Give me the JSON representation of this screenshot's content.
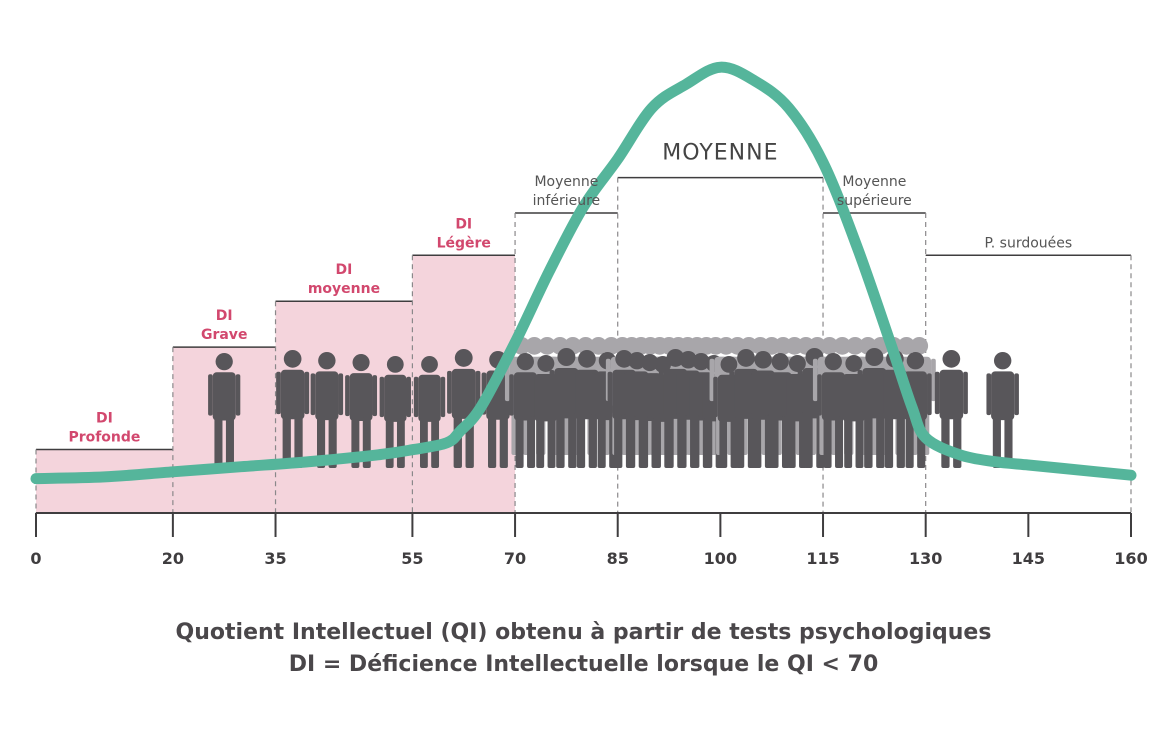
{
  "chart_data": {
    "type": "area",
    "x_ticks": [
      0,
      20,
      35,
      55,
      70,
      85,
      100,
      115,
      130,
      145,
      160
    ],
    "xlim": [
      0,
      160
    ],
    "bands": [
      {
        "from": 0,
        "to": 20,
        "level": 0.18,
        "lines": [
          "DI",
          "Profonde"
        ],
        "style": "di"
      },
      {
        "from": 20,
        "to": 35,
        "level": 0.47,
        "lines": [
          "DI",
          "Grave"
        ],
        "style": "di"
      },
      {
        "from": 35,
        "to": 55,
        "level": 0.6,
        "lines": [
          "DI",
          "moyenne"
        ],
        "style": "di"
      },
      {
        "from": 55,
        "to": 70,
        "level": 0.73,
        "lines": [
          "DI",
          "Légère"
        ],
        "style": "di"
      },
      {
        "from": 70,
        "to": 85,
        "level": 0.85,
        "lines": [
          "Moyenne",
          "inférieure"
        ],
        "style": "cat"
      },
      {
        "from": 85,
        "to": 115,
        "level": 0.95,
        "lines": [
          "MOYENNE"
        ],
        "style": "main"
      },
      {
        "from": 115,
        "to": 130,
        "level": 0.85,
        "lines": [
          "Moyenne",
          "supérieure"
        ],
        "style": "cat"
      },
      {
        "from": 130,
        "to": 160,
        "level": 0.73,
        "lines": [
          "P. surdouées"
        ],
        "style": "cat"
      }
    ],
    "curve": {
      "x": [
        0,
        10,
        20,
        30,
        40,
        50,
        55,
        60,
        62,
        65,
        70,
        75,
        80,
        85,
        90,
        95,
        100,
        105,
        110,
        115,
        120,
        125,
        128,
        130,
        135,
        140,
        145,
        150,
        155,
        160
      ],
      "y": [
        0.06,
        0.065,
        0.08,
        0.095,
        0.11,
        0.13,
        0.145,
        0.165,
        0.2,
        0.27,
        0.46,
        0.67,
        0.86,
        1.0,
        1.15,
        1.22,
        1.27,
        1.23,
        1.15,
        0.99,
        0.74,
        0.45,
        0.27,
        0.18,
        0.13,
        0.11,
        0.1,
        0.09,
        0.08,
        0.07
      ]
    },
    "people_per_band": [
      0,
      1,
      4,
      3,
      5,
      8,
      6,
      5,
      2
    ],
    "colors": {
      "curve": "#55b59b",
      "di_fill": "#f4d4dc",
      "di_text": "#d2486e",
      "axis": "#3f3d3f",
      "people": "#58565a",
      "people_back": "#a8a6aa"
    }
  },
  "caption": {
    "line1": "Quotient Intellectuel (QI) obtenu à partir de tests psychologiques",
    "line2": "DI = Déficience Intellectuelle lorsque le QI < 70"
  }
}
